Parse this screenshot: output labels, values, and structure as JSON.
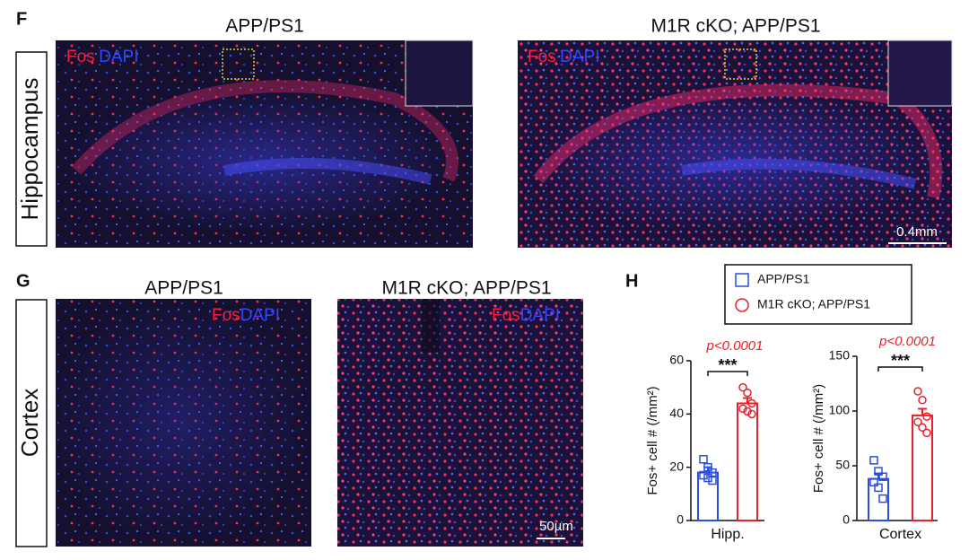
{
  "panel_labels": [
    "F",
    "G",
    "H"
  ],
  "hippocampus": {
    "row_label": "Hippocampus",
    "images": [
      {
        "title": "APP/PS1",
        "stain": [
          "Fos",
          "DAPI"
        ]
      },
      {
        "title": "M1R cKO; APP/PS1",
        "stain": [
          "Fos",
          "DAPI"
        ],
        "scale_bar": "0.4mm"
      }
    ]
  },
  "cortex": {
    "row_label": "Cortex",
    "images": [
      {
        "title": "APP/PS1",
        "stain": [
          "Fos",
          "DAPI"
        ]
      },
      {
        "title": "M1R cKO; APP/PS1",
        "stain": [
          "Fos",
          "DAPI"
        ],
        "scale_bar": "50µm"
      }
    ]
  },
  "chart_data": [
    {
      "type": "bar",
      "ylabel": "Fos+ cell # (/mm²)",
      "categories": [
        "Hipp."
      ],
      "series": [
        {
          "name": "APP/PS1",
          "color": "#2b4de0",
          "marker": "square",
          "values": [
            18
          ],
          "errors": [
            2
          ],
          "points": [
            23,
            20,
            18,
            17,
            16,
            15
          ]
        },
        {
          "name": "M1R cKO; APP/PS1",
          "color": "#e8202a",
          "marker": "circle",
          "values": [
            44
          ],
          "errors": [
            2
          ],
          "points": [
            50,
            48,
            44,
            42,
            41,
            40
          ]
        }
      ],
      "ylim": [
        0,
        60
      ],
      "yticks": [
        0,
        20,
        40,
        60
      ],
      "annotation": {
        "p": "p<0.0001",
        "stars": "***"
      }
    },
    {
      "type": "bar",
      "ylabel": "Fos+ cell # (/mm²)",
      "categories": [
        "Cortex"
      ],
      "series": [
        {
          "color": "#2b4de0",
          "marker": "square",
          "values": [
            38
          ],
          "errors": [
            5
          ],
          "points": [
            55,
            45,
            40,
            35,
            30,
            20
          ]
        },
        {
          "color": "#e8202a",
          "marker": "circle",
          "values": [
            96
          ],
          "errors": [
            6
          ],
          "points": [
            118,
            110,
            95,
            90,
            85,
            80
          ]
        }
      ],
      "ylim": [
        0,
        150
      ],
      "yticks": [
        0,
        50,
        100,
        150
      ],
      "annotation": {
        "p": "p<0.0001",
        "stars": "***"
      }
    }
  ]
}
